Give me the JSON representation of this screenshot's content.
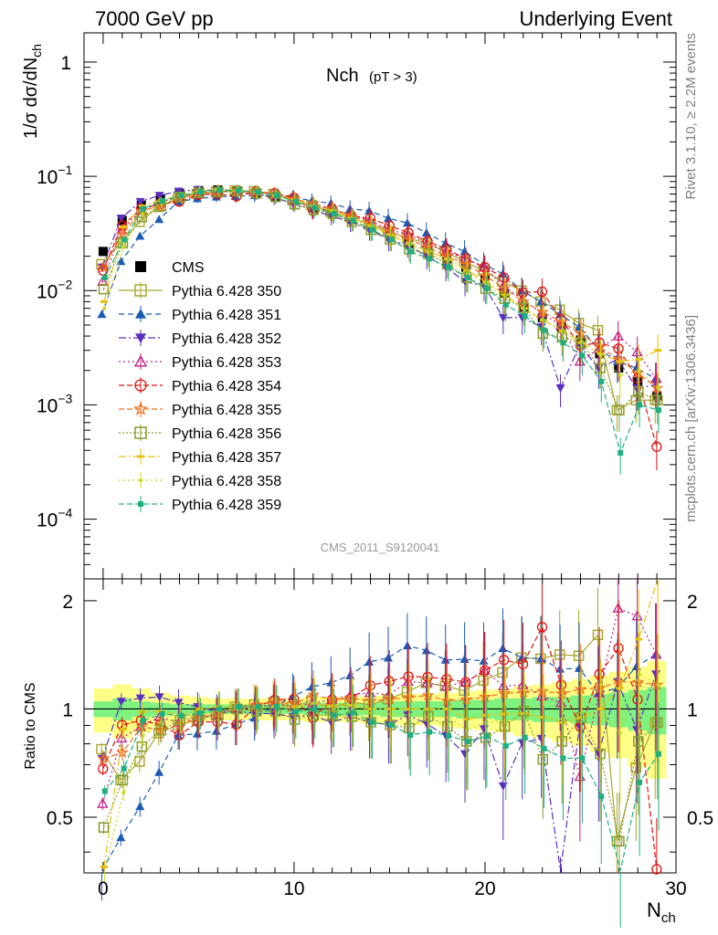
{
  "header": {
    "left_title": "7000 GeV pp",
    "right_title": "Underlying Event",
    "side_label_top": "Rivet 3.1.10, ≥ 2.2M events",
    "side_label_bottom": "mcplots.cern.ch [arXiv:1306.3436]",
    "analysis_id": "CMS_2011_S9120041"
  },
  "chart_data": [
    {
      "type": "scatter",
      "title": "Nch",
      "subtitle": "(pT >  3)",
      "xlabel": "N",
      "xlabel_sub": "ch",
      "ylabel_main": "1/σ dσ/dN",
      "ylabel_sub": "ch",
      "xlim": [
        -1,
        30
      ],
      "ylim": [
        3e-05,
        1.8
      ],
      "yscale": "log",
      "x_ticks": [
        "0",
        "10",
        "20",
        "30"
      ],
      "y_ticks": [
        {
          "base": "10",
          "exp": "−4",
          "value": 0.0001
        },
        {
          "base": "10",
          "exp": "−3",
          "value": 0.001
        },
        {
          "base": "10",
          "exp": "−2",
          "value": 0.01
        },
        {
          "base": "10",
          "exp": "−1",
          "value": 0.1
        },
        {
          "base": "1",
          "exp": "",
          "value": 1
        }
      ],
      "legend_position": "left-middle",
      "x": [
        0,
        1,
        2,
        3,
        4,
        5,
        6,
        7,
        8,
        9,
        10,
        11,
        12,
        13,
        14,
        15,
        16,
        17,
        18,
        19,
        20,
        21,
        22,
        23,
        24,
        25,
        26,
        27,
        28,
        29
      ],
      "series": [
        {
          "name": "CMS",
          "color": "#000000",
          "marker": "square-filled",
          "dash": "none",
          "values": [
            0.022,
            0.041,
            0.056,
            0.063,
            0.071,
            0.075,
            0.076,
            0.074,
            0.072,
            0.067,
            0.061,
            0.053,
            0.049,
            0.042,
            0.037,
            0.031,
            0.026,
            0.022,
            0.019,
            0.016,
            0.0125,
            0.0095,
            0.0072,
            0.0058,
            0.0048,
            0.0037,
            0.0028,
            0.0021,
            0.0016,
            0.0012
          ]
        },
        {
          "name": "Pythia 6.428 350",
          "color": "#a8a830",
          "marker": "square-open",
          "dash": "0",
          "values": [
            0.017,
            0.026,
            0.04,
            0.054,
            0.064,
            0.07,
            0.073,
            0.075,
            0.074,
            0.07,
            0.062,
            0.056,
            0.049,
            0.044,
            0.038,
            0.033,
            0.029,
            0.026,
            0.022,
            0.018,
            0.015,
            0.012,
            0.01,
            0.008,
            0.0068,
            0.0052,
            0.0045,
            0.0009,
            0.0011,
            0.0011
          ]
        },
        {
          "name": "Pythia 6.428 351",
          "color": "#1a5bb5",
          "marker": "triangle-up",
          "dash": "6 4",
          "values": [
            0.0062,
            0.018,
            0.03,
            0.042,
            0.06,
            0.064,
            0.066,
            0.067,
            0.068,
            0.068,
            0.066,
            0.061,
            0.058,
            0.052,
            0.05,
            0.043,
            0.039,
            0.032,
            0.026,
            0.022,
            0.017,
            0.014,
            0.01,
            0.008,
            0.0062,
            0.0048,
            0.0031,
            0.0024,
            0.0021,
            0.0017
          ]
        },
        {
          "name": "Pythia 6.428 352",
          "color": "#5a2fbf",
          "marker": "triangle-down",
          "dash": "8 3 2 3",
          "values": [
            0.016,
            0.043,
            0.06,
            0.068,
            0.074,
            0.076,
            0.075,
            0.073,
            0.07,
            0.065,
            0.058,
            0.051,
            0.045,
            0.04,
            0.034,
            0.028,
            0.025,
            0.02,
            0.016,
            0.012,
            0.011,
            0.0058,
            0.0058,
            0.0048,
            0.0014,
            0.0033,
            0.0021,
            0.0025,
            0.0014,
            0.0015
          ]
        },
        {
          "name": "Pythia 6.428 353",
          "color": "#c0208a",
          "marker": "triangle-open",
          "dash": "2 3",
          "values": [
            0.012,
            0.034,
            0.05,
            0.06,
            0.065,
            0.071,
            0.073,
            0.074,
            0.073,
            0.069,
            0.062,
            0.055,
            0.052,
            0.046,
            0.041,
            0.034,
            0.031,
            0.026,
            0.022,
            0.019,
            0.016,
            0.011,
            0.0084,
            0.0063,
            0.005,
            0.0024,
            0.0031,
            0.004,
            0.0029,
            0.0017
          ]
        },
        {
          "name": "Pythia 6.428 354",
          "color": "#e01010",
          "marker": "circle-open",
          "dash": "6 3",
          "values": [
            0.015,
            0.037,
            0.052,
            0.057,
            0.06,
            0.069,
            0.07,
            0.067,
            0.073,
            0.071,
            0.065,
            0.05,
            0.052,
            0.045,
            0.043,
            0.037,
            0.032,
            0.027,
            0.023,
            0.019,
            0.016,
            0.013,
            0.0096,
            0.0098,
            0.0056,
            0.0033,
            0.0035,
            0.0031,
            0.0017,
            0.00043
          ]
        },
        {
          "name": "Pythia 6.428 355",
          "color": "#f07020",
          "marker": "star",
          "dash": "6 3",
          "values": [
            0.016,
            0.031,
            0.05,
            0.055,
            0.064,
            0.071,
            0.074,
            0.075,
            0.074,
            0.07,
            0.063,
            0.058,
            0.052,
            0.045,
            0.039,
            0.033,
            0.028,
            0.024,
            0.02,
            0.017,
            0.0135,
            0.0105,
            0.008,
            0.0065,
            0.0053,
            0.0042,
            0.0032,
            0.0025,
            0.0019,
            0.0014
          ]
        },
        {
          "name": "Pythia 6.428 356",
          "color": "#8a9a2a",
          "marker": "square-open",
          "dash": "2 2",
          "values": [
            0.0103,
            0.026,
            0.044,
            0.055,
            0.066,
            0.072,
            0.073,
            0.074,
            0.071,
            0.066,
            0.057,
            0.051,
            0.047,
            0.04,
            0.034,
            0.028,
            0.023,
            0.021,
            0.017,
            0.013,
            0.0104,
            0.0085,
            0.0071,
            0.0042,
            0.0039,
            0.0035,
            0.0021,
            0.0009,
            0.0013,
            0.0011
          ]
        },
        {
          "name": "Pythia 6.428 357",
          "color": "#e8c010",
          "marker": "dash",
          "dash": "8 3 2 3",
          "values": [
            0.008,
            0.036,
            0.055,
            0.062,
            0.068,
            0.075,
            0.077,
            0.075,
            0.073,
            0.068,
            0.062,
            0.055,
            0.05,
            0.043,
            0.037,
            0.031,
            0.026,
            0.022,
            0.019,
            0.015,
            0.012,
            0.0092,
            0.007,
            0.0055,
            0.0044,
            0.0035,
            0.0028,
            0.0024,
            0.0025,
            0.003
          ]
        },
        {
          "name": "Pythia 6.428 358",
          "color": "#c8d820",
          "marker": "dot",
          "dash": "2 3",
          "values": [
            0.007,
            0.024,
            0.047,
            0.058,
            0.067,
            0.073,
            0.075,
            0.074,
            0.072,
            0.068,
            0.061,
            0.055,
            0.049,
            0.042,
            0.036,
            0.03,
            0.025,
            0.021,
            0.018,
            0.014,
            0.0115,
            0.0088,
            0.0068,
            0.0055,
            0.0045,
            0.0036,
            0.0027,
            0.0018,
            0.002,
            0.0014
          ]
        },
        {
          "name": "Pythia 6.428 359",
          "color": "#20b080",
          "marker": "square-small",
          "dash": "6 3",
          "values": [
            0.013,
            0.028,
            0.052,
            0.061,
            0.068,
            0.073,
            0.076,
            0.075,
            0.073,
            0.068,
            0.06,
            0.053,
            0.047,
            0.041,
            0.034,
            0.028,
            0.022,
            0.019,
            0.016,
            0.013,
            0.0105,
            0.0075,
            0.006,
            0.0045,
            0.0035,
            0.0027,
            0.0016,
            0.00038,
            0.001,
            0.0009
          ]
        }
      ]
    },
    {
      "type": "scatter",
      "ylabel": "Ratio to CMS",
      "xlim": [
        -1,
        30
      ],
      "ylim": [
        0.35,
        2.3
      ],
      "yscale": "log",
      "y_ticks": [
        "0.5",
        "1",
        "2"
      ],
      "band_inner_color": "#7ff27f",
      "band_outer_color": "#ffff88",
      "band_inner_halfwidth": [
        0.05,
        0.07,
        0.05,
        0.04,
        0.03,
        0.03,
        0.03,
        0.03,
        0.03,
        0.03,
        0.03,
        0.04,
        0.04,
        0.04,
        0.04,
        0.05,
        0.05,
        0.05,
        0.05,
        0.06,
        0.06,
        0.07,
        0.07,
        0.08,
        0.08,
        0.09,
        0.1,
        0.11,
        0.13,
        0.15
      ],
      "band_outer_halfwidth": [
        0.14,
        0.17,
        0.14,
        0.11,
        0.09,
        0.08,
        0.07,
        0.07,
        0.07,
        0.07,
        0.07,
        0.08,
        0.08,
        0.08,
        0.09,
        0.09,
        0.1,
        0.1,
        0.11,
        0.12,
        0.13,
        0.14,
        0.16,
        0.17,
        0.19,
        0.21,
        0.24,
        0.27,
        0.31,
        0.36
      ],
      "note": ""
    }
  ]
}
